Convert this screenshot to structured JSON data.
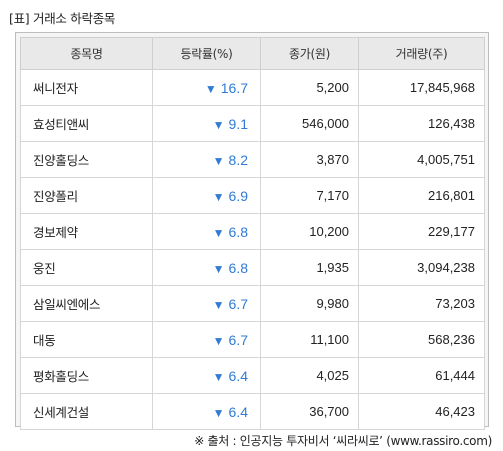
{
  "title": "[표] 거래소 하락종목",
  "table": {
    "headers": [
      "종목명",
      "등락률(%)",
      "종가(원)",
      "거래량(주)"
    ],
    "down_icon": "down-triangle-icon",
    "colors": {
      "rate": "#2f7bd6",
      "header_bg": "#e9e9e9"
    },
    "rows": [
      {
        "name": "써니전자",
        "rate": "16.7",
        "close": "5,200",
        "volume": "17,845,968"
      },
      {
        "name": "효성티앤씨",
        "rate": "9.1",
        "close": "546,000",
        "volume": "126,438"
      },
      {
        "name": "진양홀딩스",
        "rate": "8.2",
        "close": "3,870",
        "volume": "4,005,751"
      },
      {
        "name": "진양폴리",
        "rate": "6.9",
        "close": "7,170",
        "volume": "216,801"
      },
      {
        "name": "경보제약",
        "rate": "6.8",
        "close": "10,200",
        "volume": "229,177"
      },
      {
        "name": "웅진",
        "rate": "6.8",
        "close": "1,935",
        "volume": "3,094,238"
      },
      {
        "name": "삼일씨엔에스",
        "rate": "6.7",
        "close": "9,980",
        "volume": "73,203"
      },
      {
        "name": "대동",
        "rate": "6.7",
        "close": "11,100",
        "volume": "568,236"
      },
      {
        "name": "평화홀딩스",
        "rate": "6.4",
        "close": "4,025",
        "volume": "61,444"
      },
      {
        "name": "신세계건설",
        "rate": "6.4",
        "close": "36,700",
        "volume": "46,423"
      }
    ]
  },
  "source": "※ 출처 : 인공지능 투자비서 ‘씨라씨로’ (www.rassiro.com)"
}
